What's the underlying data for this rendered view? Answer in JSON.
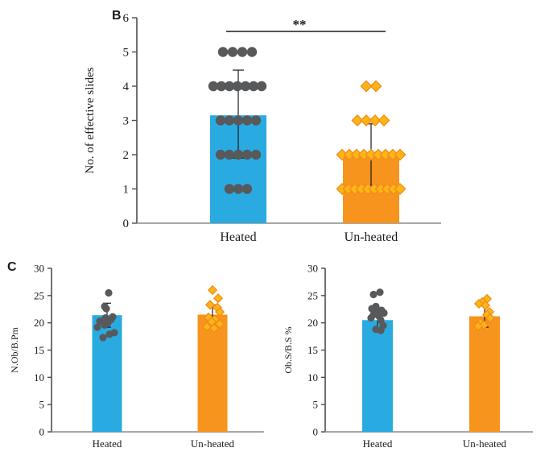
{
  "panels": {
    "b_label": "B",
    "c_label": "C"
  },
  "colors": {
    "heated_bar": "#29ABE2",
    "unheated_bar": "#F7941D",
    "circle_marker": "#58595B",
    "diamond_fill": "#FDB515",
    "diamond_stroke": "#F28C1C",
    "axis": "#4d4d4d",
    "x_axis": "#8c8c8c",
    "error_bar": "#1a1a1a",
    "significance": "#1a1a1a"
  },
  "chart_data": [
    {
      "id": "chartB",
      "type": "bar",
      "overlay": "scatter",
      "title": "",
      "xlabel": "",
      "ylabel": "No. of effective slides",
      "ylim": [
        0,
        6
      ],
      "yticks": [
        0,
        1,
        2,
        3,
        4,
        5,
        6
      ],
      "grid": false,
      "legend": "none",
      "categories": [
        "Heated",
        "Un-heated"
      ],
      "significance": {
        "label": "**",
        "between": [
          "Heated",
          "Un-heated"
        ]
      },
      "series": [
        {
          "name": "Heated",
          "marker": "circle",
          "bar_color": "#29ABE2",
          "marker_color": "#58595B",
          "mean": 3.15,
          "error_low": 1.9,
          "error_high": 4.47,
          "points": [
            {
              "y": 5,
              "dx": -19
            },
            {
              "y": 5,
              "dx": -7
            },
            {
              "y": 5,
              "dx": 5
            },
            {
              "y": 5,
              "dx": 17
            },
            {
              "y": 4,
              "dx": -31
            },
            {
              "y": 4,
              "dx": -21
            },
            {
              "y": 4,
              "dx": -11
            },
            {
              "y": 4,
              "dx": -1
            },
            {
              "y": 4,
              "dx": 9
            },
            {
              "y": 4,
              "dx": 19
            },
            {
              "y": 4,
              "dx": 29
            },
            {
              "y": 3,
              "dx": -22
            },
            {
              "y": 3,
              "dx": -11
            },
            {
              "y": 3,
              "dx": 0
            },
            {
              "y": 3,
              "dx": 11
            },
            {
              "y": 3,
              "dx": 22
            },
            {
              "y": 2,
              "dx": -22
            },
            {
              "y": 2,
              "dx": -11
            },
            {
              "y": 2,
              "dx": 0
            },
            {
              "y": 2,
              "dx": 11
            },
            {
              "y": 2,
              "dx": 22
            },
            {
              "y": 1,
              "dx": -11
            },
            {
              "y": 1,
              "dx": 0
            },
            {
              "y": 1,
              "dx": 11
            }
          ]
        },
        {
          "name": "Un-heated",
          "marker": "diamond",
          "bar_color": "#F7941D",
          "marker_fill": "#FDB515",
          "marker_stroke": "#F28C1C",
          "mean": 1.95,
          "error_low": 1.1,
          "error_high": 2.9,
          "points": [
            {
              "y": 4,
              "dx": -6
            },
            {
              "y": 4,
              "dx": 6
            },
            {
              "y": 3,
              "dx": -17
            },
            {
              "y": 3,
              "dx": -6
            },
            {
              "y": 3,
              "dx": 5
            },
            {
              "y": 3,
              "dx": 16
            },
            {
              "y": 2,
              "dx": -36
            },
            {
              "y": 2,
              "dx": -27
            },
            {
              "y": 2,
              "dx": -18
            },
            {
              "y": 2,
              "dx": -9
            },
            {
              "y": 2,
              "dx": 0
            },
            {
              "y": 2,
              "dx": 9
            },
            {
              "y": 2,
              "dx": 18
            },
            {
              "y": 2,
              "dx": 27
            },
            {
              "y": 2,
              "dx": 36
            },
            {
              "y": 1,
              "dx": -36
            },
            {
              "y": 1,
              "dx": -28
            },
            {
              "y": 1,
              "dx": -20
            },
            {
              "y": 1,
              "dx": -12
            },
            {
              "y": 1,
              "dx": -4
            },
            {
              "y": 1,
              "dx": 4
            },
            {
              "y": 1,
              "dx": 12
            },
            {
              "y": 1,
              "dx": 20
            },
            {
              "y": 1,
              "dx": 28
            },
            {
              "y": 1,
              "dx": 36
            }
          ]
        }
      ]
    },
    {
      "id": "chartC1",
      "type": "bar",
      "overlay": "scatter",
      "title": "",
      "xlabel": "",
      "ylabel": "N.Ob/B.Pm",
      "ylim": [
        0,
        30
      ],
      "yticks": [
        0,
        5,
        10,
        15,
        20,
        25,
        30
      ],
      "grid": false,
      "legend": "none",
      "categories": [
        "Heated",
        "Un-heated"
      ],
      "series": [
        {
          "name": "Heated",
          "marker": "circle",
          "bar_color": "#29ABE2",
          "marker_color": "#58595B",
          "mean": 21.4,
          "error_low": 19.2,
          "error_high": 23.6,
          "points": [
            {
              "y": 25.5,
              "dx": 2
            },
            {
              "y": 23.0,
              "dx": -3
            },
            {
              "y": 22.6,
              "dx": -1
            },
            {
              "y": 21.1,
              "dx": 7
            },
            {
              "y": 20.9,
              "dx": -2
            },
            {
              "y": 20.6,
              "dx": 5
            },
            {
              "y": 20.3,
              "dx": -9
            },
            {
              "y": 20.0,
              "dx": 1
            },
            {
              "y": 19.6,
              "dx": -3
            },
            {
              "y": 19.2,
              "dx": -12
            },
            {
              "y": 18.2,
              "dx": 9
            },
            {
              "y": 17.9,
              "dx": 3
            },
            {
              "y": 17.3,
              "dx": -5
            }
          ]
        },
        {
          "name": "Un-heated",
          "marker": "diamond",
          "bar_color": "#F7941D",
          "marker_fill": "#FDB515",
          "marker_stroke": "#F28C1C",
          "mean": 21.5,
          "error_low": 19.7,
          "error_high": 23.3,
          "points": [
            {
              "y": 26.0,
              "dx": 0
            },
            {
              "y": 24.5,
              "dx": 7
            },
            {
              "y": 23.3,
              "dx": -3
            },
            {
              "y": 22.8,
              "dx": 6
            },
            {
              "y": 22.0,
              "dx": 9
            },
            {
              "y": 21.0,
              "dx": -5
            },
            {
              "y": 20.6,
              "dx": 3
            },
            {
              "y": 20.2,
              "dx": -1
            },
            {
              "y": 19.8,
              "dx": 9
            },
            {
              "y": 19.3,
              "dx": -7
            },
            {
              "y": 19.0,
              "dx": 2
            }
          ]
        }
      ]
    },
    {
      "id": "chartC2",
      "type": "bar",
      "overlay": "scatter",
      "title": "",
      "xlabel": "",
      "ylabel": "Ob.S/B.S %",
      "ylim": [
        0,
        30
      ],
      "yticks": [
        0,
        5,
        10,
        15,
        20,
        25,
        30
      ],
      "grid": false,
      "legend": "none",
      "categories": [
        "Heated",
        "Un-heated"
      ],
      "series": [
        {
          "name": "Heated",
          "marker": "circle",
          "bar_color": "#29ABE2",
          "marker_color": "#58595B",
          "mean": 20.5,
          "error_low": 19.0,
          "error_high": 22.0,
          "points": [
            {
              "y": 25.6,
              "dx": 3
            },
            {
              "y": 25.2,
              "dx": -5
            },
            {
              "y": 23.0,
              "dx": -2
            },
            {
              "y": 22.6,
              "dx": -7
            },
            {
              "y": 22.3,
              "dx": 5
            },
            {
              "y": 22.0,
              "dx": -1
            },
            {
              "y": 21.8,
              "dx": 8
            },
            {
              "y": 21.5,
              "dx": -5
            },
            {
              "y": 21.2,
              "dx": 2
            },
            {
              "y": 20.9,
              "dx": -8
            },
            {
              "y": 20.5,
              "dx": 4
            },
            {
              "y": 19.5,
              "dx": 7
            },
            {
              "y": 18.8,
              "dx": -2
            },
            {
              "y": 18.6,
              "dx": 4
            }
          ]
        },
        {
          "name": "Un-heated",
          "marker": "diamond",
          "bar_color": "#F7941D",
          "marker_fill": "#FDB515",
          "marker_stroke": "#F28C1C",
          "mean": 21.2,
          "error_low": 19.2,
          "error_high": 23.2,
          "points": [
            {
              "y": 24.4,
              "dx": 3
            },
            {
              "y": 23.8,
              "dx": -3
            },
            {
              "y": 23.5,
              "dx": -7
            },
            {
              "y": 23.2,
              "dx": 1
            },
            {
              "y": 22.0,
              "dx": 6
            },
            {
              "y": 21.5,
              "dx": 3
            },
            {
              "y": 20.9,
              "dx": 7
            },
            {
              "y": 20.0,
              "dx": -5
            },
            {
              "y": 19.6,
              "dx": -1
            },
            {
              "y": 19.4,
              "dx": -8
            }
          ]
        }
      ]
    }
  ]
}
